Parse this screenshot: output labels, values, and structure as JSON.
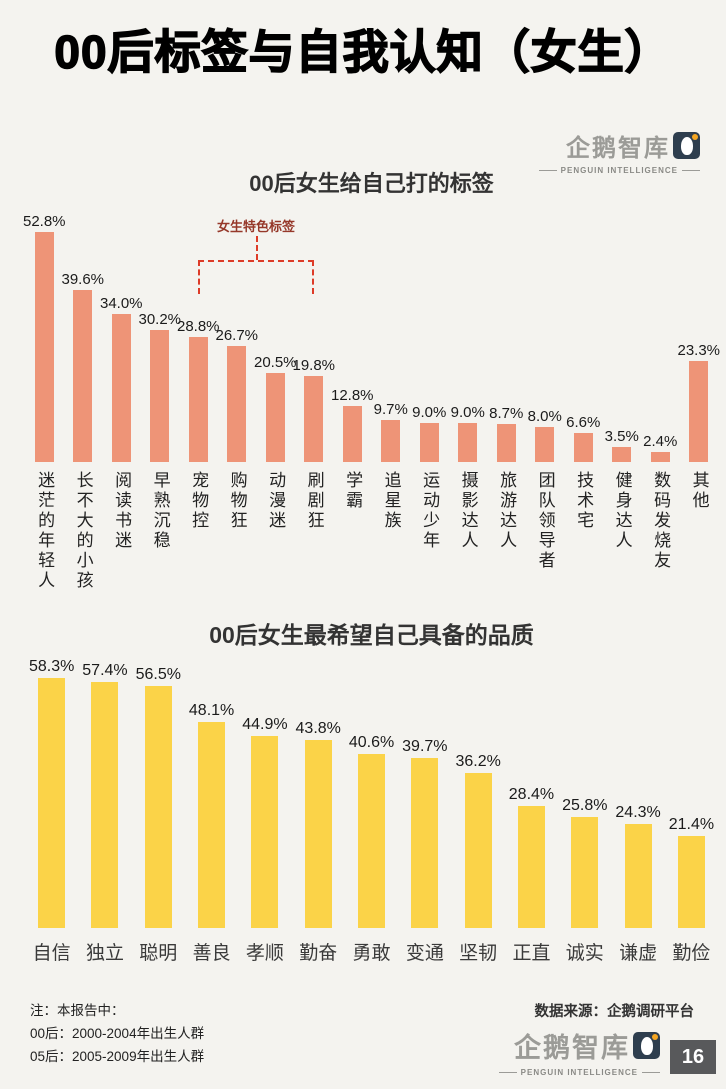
{
  "page": {
    "title": "00后标签与自我认知（女生）",
    "page_number": "16",
    "background_color": "#f4f3ef"
  },
  "logo": {
    "name": "企鹅智库",
    "subtitle": "PENGUIN INTELLIGENCE",
    "penguin_icon": "penguin-icon"
  },
  "footer": {
    "notes": [
      "注：本报告中：",
      "00后：2000-2004年出生人群",
      "05后：2005-2009年出生人群"
    ],
    "source": "数据来源：企鹅调研平台"
  },
  "chart_data": [
    {
      "type": "bar",
      "title": "00后女生给自己打的标签",
      "categories": [
        "迷茫的年轻人",
        "长不大的小孩",
        "阅读书迷",
        "早熟沉稳",
        "宠物控",
        "购物狂",
        "动漫迷",
        "刷剧狂",
        "学霸",
        "追星族",
        "运动少年",
        "摄影达人",
        "旅游达人",
        "团队领导者",
        "技术宅",
        "健身达人",
        "数码发烧友",
        "其他"
      ],
      "values": [
        52.8,
        39.6,
        34.0,
        30.2,
        28.8,
        26.7,
        20.5,
        19.8,
        12.8,
        9.7,
        9.0,
        9.0,
        8.7,
        8.0,
        6.6,
        3.5,
        2.4,
        23.3
      ],
      "value_suffix": "%",
      "ylim": [
        0,
        55
      ],
      "grid": false,
      "legend": "none",
      "bar_color": "#ee9477",
      "annotation": {
        "label": "女生特色标签",
        "from_index": 4,
        "to_index": 7,
        "line_color": "#dd3b28"
      }
    },
    {
      "type": "bar",
      "title": "00后女生最希望自己具备的品质",
      "categories": [
        "自信",
        "独立",
        "聪明",
        "善良",
        "孝顺",
        "勤奋",
        "勇敢",
        "变通",
        "坚韧",
        "正直",
        "诚实",
        "谦虚",
        "勤俭"
      ],
      "values": [
        58.3,
        57.4,
        56.5,
        48.1,
        44.9,
        43.8,
        40.6,
        39.7,
        36.2,
        28.4,
        25.8,
        24.3,
        21.4
      ],
      "value_suffix": "%",
      "ylim": [
        0,
        62
      ],
      "grid": false,
      "legend": "none",
      "bar_color": "#fbd348"
    }
  ]
}
